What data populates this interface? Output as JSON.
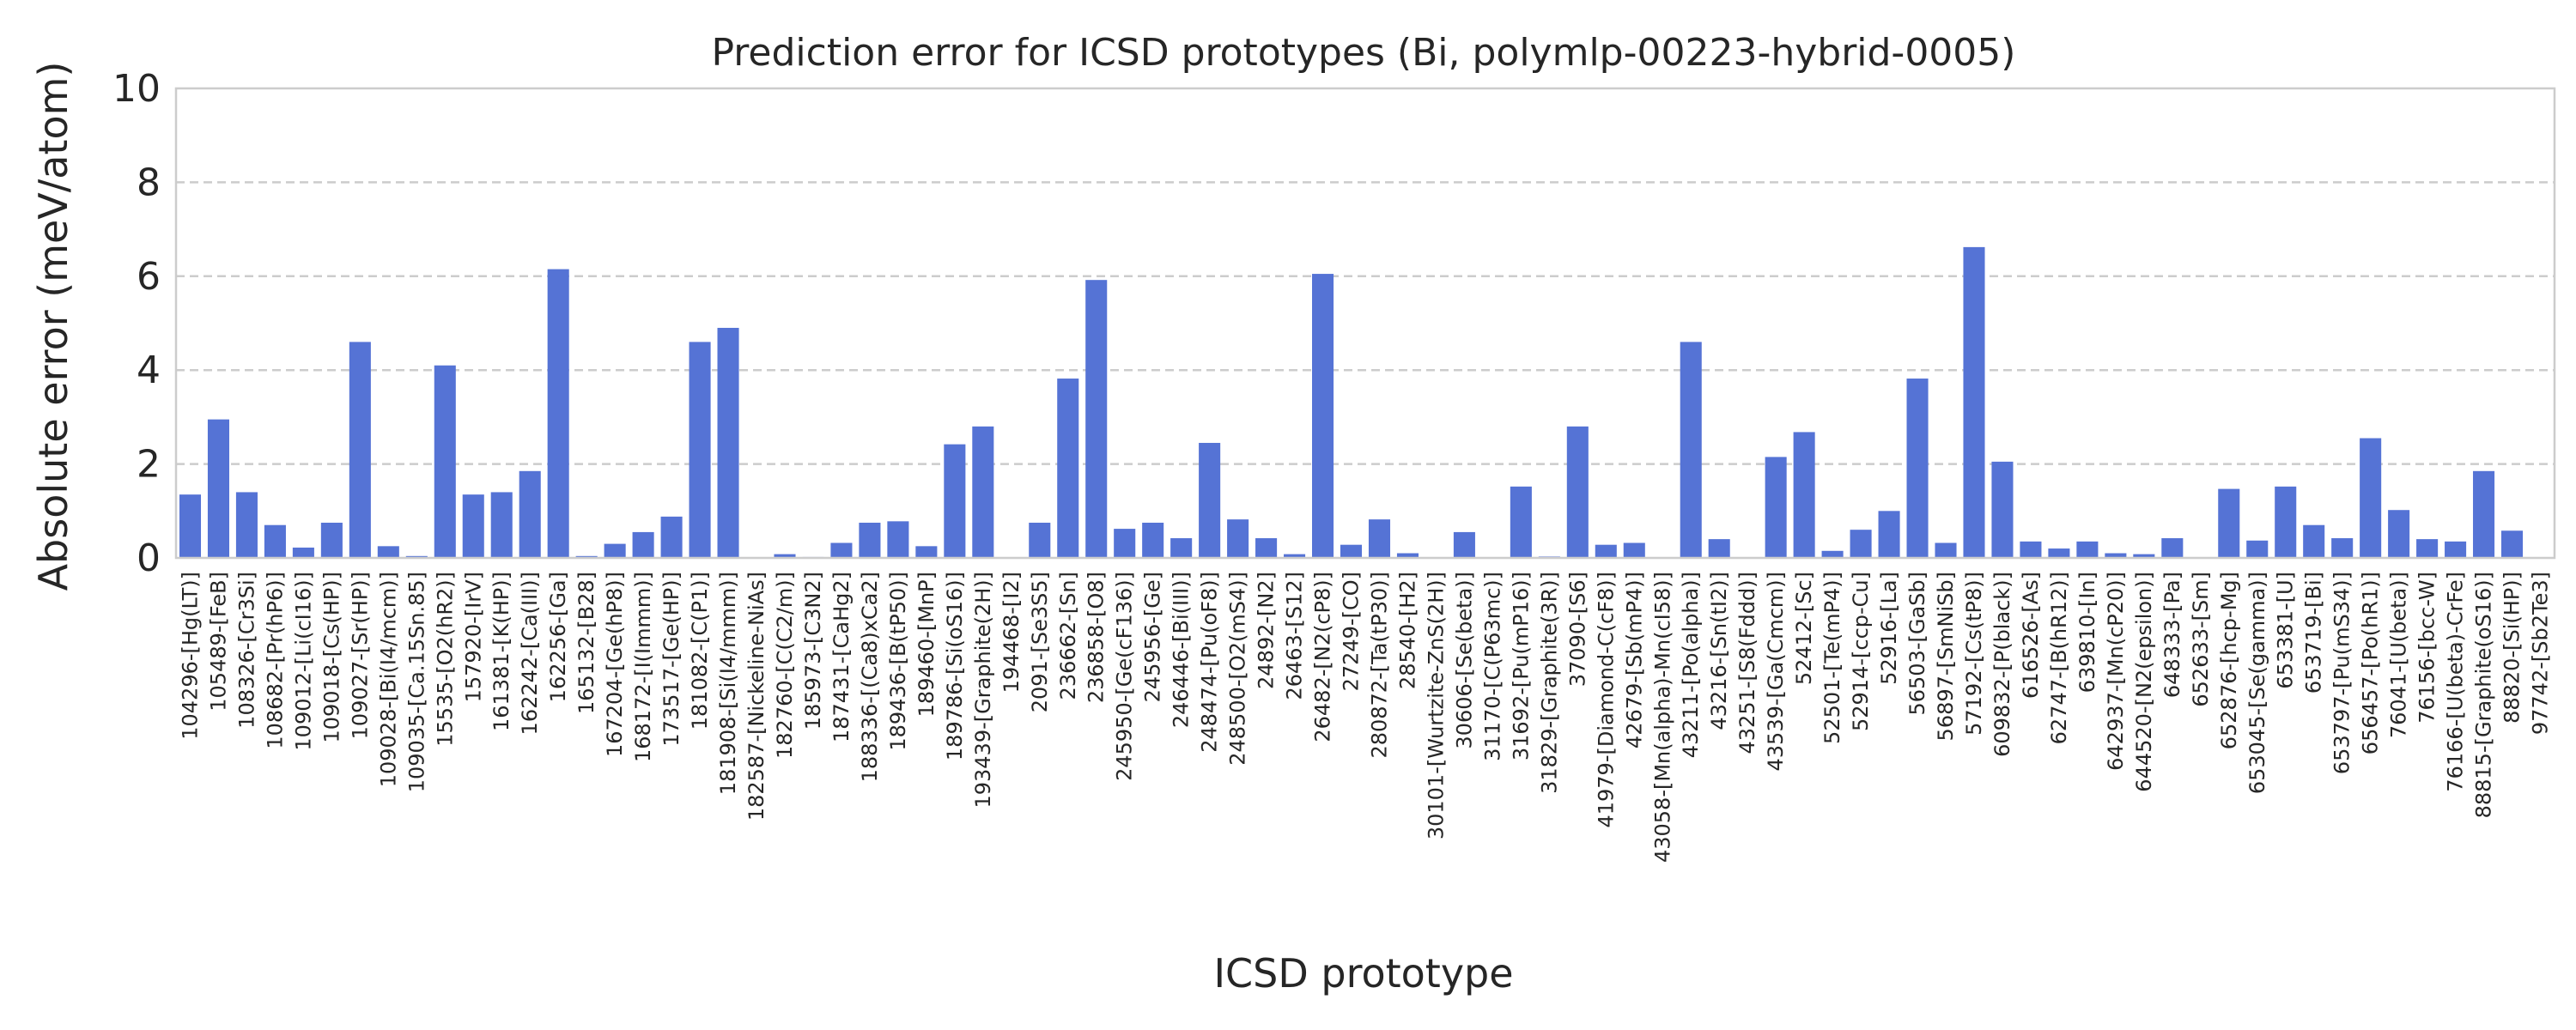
{
  "chart_data": {
    "type": "bar",
    "title": "Prediction error for ICSD prototypes (Bi, polymlp-00223-hybrid-0005)",
    "xlabel": "ICSD prototype",
    "ylabel": "Absolute error (meV/atom)",
    "ylim": [
      0,
      10
    ],
    "yticks": [
      "0",
      "2",
      "4",
      "6",
      "8",
      "10"
    ],
    "grid": "horizontal dashed",
    "color": "#5573d5",
    "categories": [
      "104296-[Hg(LT)]",
      "105489-[FeB]",
      "108326-[Cr3Si]",
      "108682-[Pr(hP6)]",
      "109012-[Li(cI16)]",
      "109018-[Cs(HP)]",
      "109027-[Sr(HP)]",
      "109028-[Bi(I4/mcm)]",
      "109035-[Ca.15Sn.85]",
      "15535-[O2(hR2)]",
      "157920-[IrV]",
      "161381-[K(HP)]",
      "162242-[Ca(III)]",
      "162256-[Ga]",
      "165132-[B28]",
      "167204-[Ge(hP8)]",
      "168172-[I(Immm)]",
      "173517-[Ge(HP)]",
      "181082-[C(P1)]",
      "181908-[Si(I4/mmm)]",
      "182587-[Nickeline-NiAs]",
      "182760-[C(C2/m)]",
      "185973-[C3N2]",
      "187431-[CaHg2]",
      "188336-[(Ca8)xCa2]",
      "189436-[B(tP50)]",
      "189460-[MnP]",
      "189786-[Si(oS16)]",
      "193439-[Graphite(2H)]",
      "194468-[I2]",
      "2091-[Se3S5]",
      "236662-[Sn]",
      "236858-[O8]",
      "245950-[Ge(cF136)]",
      "245956-[Ge]",
      "246446-[Bi(III)]",
      "248474-[Pu(oF8)]",
      "248500-[O2(mS4)]",
      "24892-[N2]",
      "26463-[S12]",
      "26482-[N2(cP8)]",
      "27249-[CO]",
      "280872-[Ta(tP30)]",
      "28540-[H2]",
      "30101-[Wurtzite-ZnS(2H)]",
      "30606-[Se(beta)]",
      "31170-[C(P63mc)]",
      "31692-[Pu(mP16)]",
      "31829-[Graphite(3R)]",
      "37090-[S6]",
      "41979-[Diamond-C(cF8)]",
      "42679-[Sb(mP4)]",
      "43058-[Mn(alpha)-Mn(cI58)]",
      "43211-[Po(alpha)]",
      "43216-[Sn(tI2)]",
      "43251-[S8(Fddd)]",
      "43539-[Ga(Cmcm)]",
      "52412-[Sc]",
      "52501-[Te(mP4)]",
      "52914-[ccp-Cu]",
      "52916-[La]",
      "56503-[GaSb]",
      "56897-[SmNiSb]",
      "57192-[Cs(tP8)]",
      "609832-[P(black)]",
      "616526-[As]",
      "62747-[B(hR12)]",
      "639810-[In]",
      "642937-[Mn(cP20)]",
      "644520-[N2(epsilon)]",
      "648333-[Pa]",
      "652633-[Sm]",
      "652876-[hcp-Mg]",
      "653045-[Se(gamma)]",
      "653381-[U]",
      "653719-[Bi]",
      "653797-[Pu(mS34)]",
      "656457-[Po(hR1)]",
      "76041-[U(beta)]",
      "76156-[bcc-W]",
      "76166-[U(beta)-CrFe]",
      "88815-[Graphite(oS16)]",
      "88820-[Si(HP)]",
      "97742-[Sb2Te3]"
    ],
    "values": [
      1.35,
      2.95,
      1.4,
      0.7,
      0.22,
      0.75,
      4.6,
      0.25,
      0.04,
      4.1,
      1.35,
      1.4,
      1.85,
      6.15,
      0.04,
      0.3,
      0.55,
      0.88,
      4.6,
      4.9,
      0.0,
      0.08,
      0.02,
      0.32,
      0.75,
      0.78,
      0.25,
      2.42,
      2.8,
      0.0,
      0.75,
      3.82,
      5.92,
      0.62,
      0.75,
      0.42,
      2.45,
      0.82,
      0.42,
      0.08,
      6.05,
      0.28,
      0.82,
      0.1,
      0.0,
      0.55,
      0.0,
      1.52,
      0.03,
      2.8,
      0.28,
      0.32,
      0.0,
      4.6,
      0.4,
      0.0,
      2.15,
      2.68,
      0.15,
      0.6,
      1.0,
      3.82,
      0.32,
      6.62,
      2.05,
      0.35,
      0.2,
      0.35,
      0.1,
      0.08,
      0.42,
      0.0,
      1.47,
      0.37,
      1.52,
      0.7,
      0.42,
      2.55,
      1.02,
      0.4,
      0.35,
      1.85,
      0.58,
      0.0
    ]
  }
}
